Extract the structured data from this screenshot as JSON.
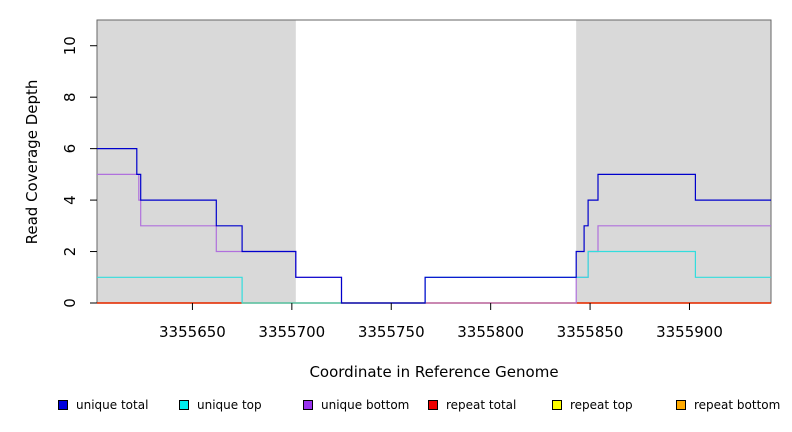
{
  "chart_data": {
    "type": "line",
    "step": true,
    "xlabel": "Coordinate in Reference Genome",
    "ylabel": "Read Coverage Depth",
    "xlim": [
      3355602,
      3355941
    ],
    "ylim": [
      0,
      11
    ],
    "x_ticks": [
      3355650,
      3355700,
      3355750,
      3355800,
      3355850,
      3355900
    ],
    "y_ticks": [
      0,
      2,
      4,
      6,
      8,
      10
    ],
    "shaded_regions": [
      [
        3355602,
        3355702
      ],
      [
        3355843,
        3355941
      ]
    ],
    "shade_color": "#d9d9d9",
    "grid": false,
    "legend_position": "bottom",
    "series": [
      {
        "name": "unique total",
        "color": "#0000cc",
        "points": [
          [
            3355602,
            6
          ],
          [
            3355622,
            6
          ],
          [
            3355622,
            5
          ],
          [
            3355624,
            5
          ],
          [
            3355624,
            4
          ],
          [
            3355662,
            4
          ],
          [
            3355662,
            3
          ],
          [
            3355675,
            3
          ],
          [
            3355675,
            2
          ],
          [
            3355702,
            2
          ],
          [
            3355702,
            1
          ],
          [
            3355725,
            1
          ],
          [
            3355725,
            0
          ],
          [
            3355767,
            0
          ],
          [
            3355767,
            1
          ],
          [
            3355843,
            1
          ],
          [
            3355843,
            2
          ],
          [
            3355847,
            2
          ],
          [
            3355847,
            3
          ],
          [
            3355849,
            3
          ],
          [
            3355849,
            4
          ],
          [
            3355854,
            4
          ],
          [
            3355854,
            5
          ],
          [
            3355903,
            5
          ],
          [
            3355903,
            4
          ],
          [
            3355941,
            4
          ]
        ]
      },
      {
        "name": "unique top",
        "color": "#33dddd",
        "points": [
          [
            3355602,
            1
          ],
          [
            3355675,
            1
          ],
          [
            3355675,
            0
          ],
          [
            3355767,
            0
          ],
          [
            3355767,
            1
          ],
          [
            3355843,
            1
          ],
          [
            3355843,
            1
          ],
          [
            3355849,
            1
          ],
          [
            3355849,
            2
          ],
          [
            3355903,
            2
          ],
          [
            3355903,
            1
          ],
          [
            3355941,
            1
          ]
        ]
      },
      {
        "name": "unique bottom",
        "color": "#b070dd",
        "points": [
          [
            3355602,
            5
          ],
          [
            3355623,
            5
          ],
          [
            3355623,
            4
          ],
          [
            3355624,
            4
          ],
          [
            3355624,
            3
          ],
          [
            3355662,
            3
          ],
          [
            3355662,
            2
          ],
          [
            3355702,
            2
          ],
          [
            3355702,
            1
          ],
          [
            3355725,
            1
          ],
          [
            3355725,
            0
          ],
          [
            3355843,
            0
          ],
          [
            3355843,
            1
          ],
          [
            3355849,
            1
          ],
          [
            3355849,
            2
          ],
          [
            3355854,
            2
          ],
          [
            3355854,
            3
          ],
          [
            3355941,
            3
          ]
        ]
      },
      {
        "name": "repeat total",
        "color": "#dd0000",
        "points": [
          [
            3355602,
            0
          ],
          [
            3355941,
            0
          ]
        ]
      },
      {
        "name": "repeat top",
        "color": "#ffff00",
        "points": [
          [
            3355602,
            0
          ],
          [
            3355941,
            0
          ]
        ]
      },
      {
        "name": "repeat bottom",
        "color": "#ff9900",
        "points": [
          [
            3355602,
            0
          ],
          [
            3355941,
            0
          ]
        ]
      }
    ]
  },
  "legend": {
    "items": [
      {
        "label": "unique total",
        "color": "#0000dd"
      },
      {
        "label": "unique top",
        "color": "#00eeee"
      },
      {
        "label": "unique bottom",
        "color": "#9933ee"
      },
      {
        "label": "repeat total",
        "color": "#ee0000"
      },
      {
        "label": "repeat top",
        "color": "#ffff00"
      },
      {
        "label": "repeat bottom",
        "color": "#ffaa00"
      }
    ]
  }
}
